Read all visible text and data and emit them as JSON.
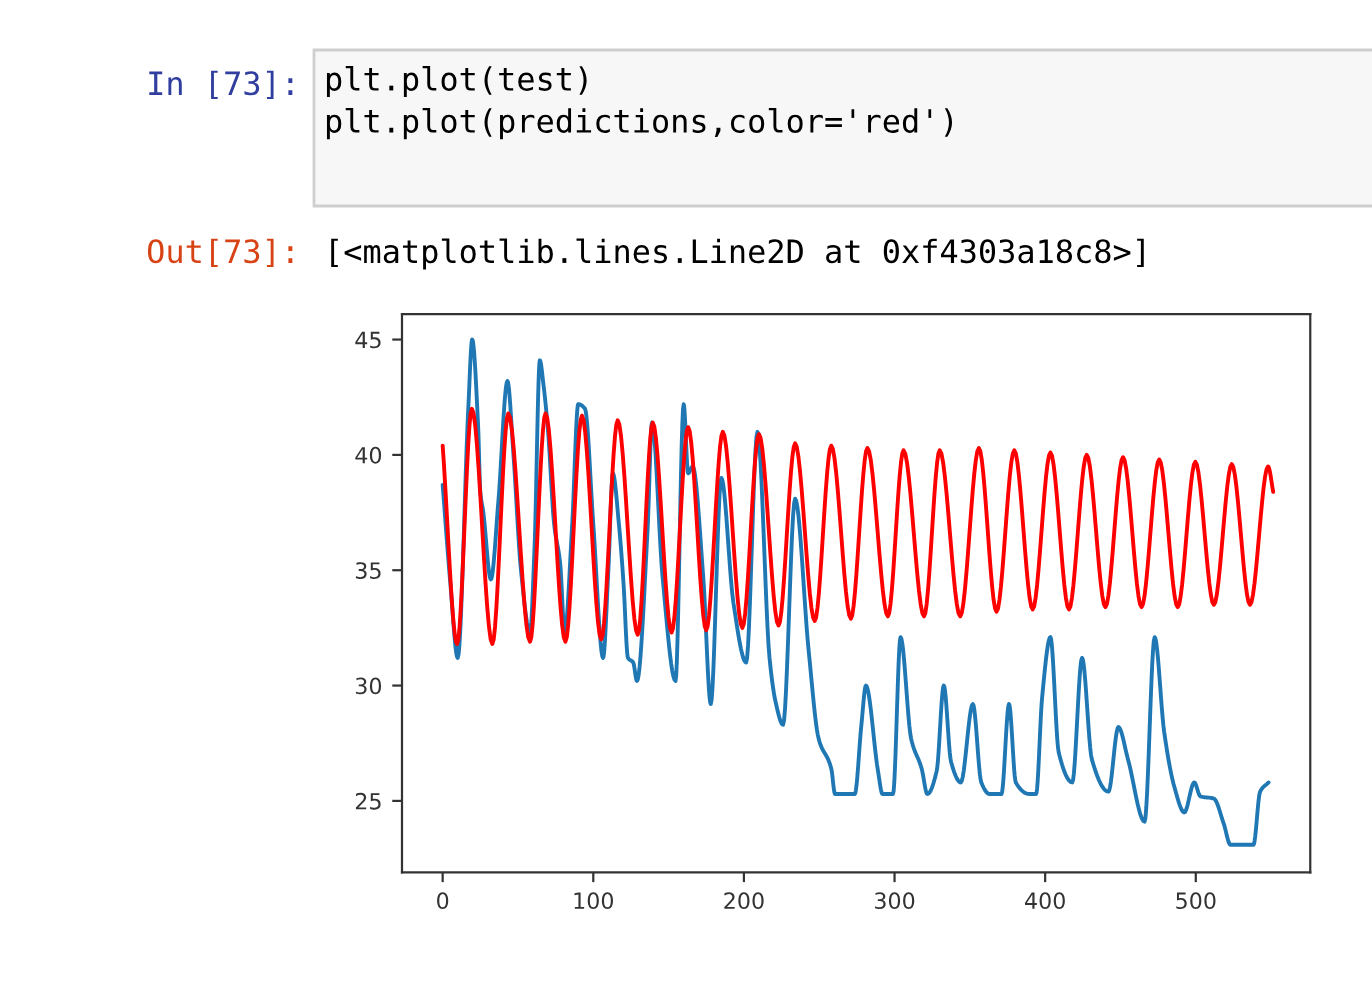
{
  "chart_data": {
    "type": "line",
    "annotations": [
      "In [73]:",
      "plt.plot(test)\nplt.plot(predictions,color='red')",
      "Out[73]:",
      "[<matplotlib.lines.Line2D at 0xf4303a18c8>]"
    ],
    "series": [
      {
        "color": "#1f77b4",
        "x": [
          0,
          5,
          10,
          17,
          19.6,
          23.5,
          25,
          27,
          32,
          37,
          43,
          47,
          52,
          58,
          61,
          64.5,
          67,
          70,
          74,
          78,
          81,
          86,
          90,
          94.5,
          100,
          106.5,
          110,
          113,
          117,
          120,
          123,
          126.5,
          129,
          136,
          139,
          146,
          154.6,
          160,
          163,
          166,
          173,
          178,
          185,
          193,
          201.5,
          209,
          217,
          221,
          226,
          234,
          243,
          249.6,
          258,
          260.5,
          273.6,
          278,
          281,
          289,
          292,
          299,
          304,
          311,
          318,
          321.8,
          328,
          332.7,
          337.5,
          344,
          352,
          357.6,
          363,
          371,
          376,
          380.5,
          389.5,
          394,
          398,
          403.5,
          409,
          418,
          424.5,
          431,
          442,
          448.6,
          455,
          466,
          472.7,
          479,
          485.8,
          492.4,
          499,
          503,
          512,
          518.6,
          523,
          538.3,
          542.7,
          548.3
        ],
        "values": [
          38.7,
          34.5,
          31.2,
          42,
          45,
          41.3,
          38.4,
          37.5,
          34.6,
          38,
          43.2,
          40,
          35,
          32.3,
          36,
          44.1,
          43,
          41,
          37,
          35.3,
          32.3,
          37,
          42.2,
          42,
          37,
          31.2,
          35,
          39.2,
          37,
          34.5,
          31.2,
          31,
          30.2,
          36.7,
          41.4,
          34.7,
          30.2,
          42.2,
          39.2,
          39.5,
          34.7,
          29.2,
          39,
          33.6,
          31,
          41,
          31.2,
          29.3,
          28.3,
          38.1,
          31.5,
          27.7,
          26.4,
          25.3,
          25.3,
          28.3,
          30,
          26.3,
          25.3,
          25.3,
          32.1,
          27.7,
          26.4,
          25.3,
          26.3,
          30,
          26.7,
          25.8,
          29.2,
          25.8,
          25.3,
          25.3,
          29.2,
          25.8,
          25.3,
          25.3,
          29.5,
          32.1,
          27.1,
          25.8,
          31.2,
          26.8,
          25.4,
          28.2,
          26.8,
          24.1,
          32.1,
          28,
          25.6,
          24.5,
          25.8,
          25.2,
          25.1,
          24,
          23.1,
          23.1,
          25.4,
          25.8
        ]
      },
      {
        "color": "#ff0000",
        "x": [
          0,
          9.6,
          19.4,
          33,
          43.6,
          58,
          68.3,
          81.5,
          92.5,
          105.3,
          116.2,
          129.5,
          139.5,
          152,
          163,
          175,
          186,
          199,
          210,
          223,
          234,
          247,
          258,
          271,
          282,
          295.6,
          306,
          319.6,
          330,
          343.6,
          356,
          367.7,
          379.5,
          391.7,
          403.5,
          415.8,
          427.6,
          440,
          451.7,
          464,
          475.7,
          488,
          499.7,
          512,
          523.9,
          536,
          548,
          551.4
        ],
        "values": [
          40.4,
          31.8,
          42,
          31.8,
          41.8,
          31.9,
          41.8,
          31.9,
          41.7,
          32,
          41.5,
          32.2,
          41.4,
          32.3,
          41.2,
          32.4,
          41,
          32.5,
          40.9,
          32.6,
          40.5,
          32.8,
          40.4,
          32.9,
          40.3,
          33,
          40.2,
          33,
          40.2,
          33,
          40.3,
          33.2,
          40.2,
          33.3,
          40.1,
          33.3,
          40,
          33.4,
          39.9,
          33.4,
          39.8,
          33.4,
          39.7,
          33.5,
          39.6,
          33.5,
          39.5,
          38.4
        ]
      }
    ],
    "xlim": [
      -27,
      576
    ],
    "xticks": [
      0,
      100,
      200,
      300,
      400,
      500
    ],
    "ylim": [
      21.9,
      46.1
    ],
    "yticks": [
      25,
      30,
      35,
      40,
      45
    ],
    "grid": false,
    "legend": false,
    "marker": "none",
    "line_style": "solid"
  }
}
